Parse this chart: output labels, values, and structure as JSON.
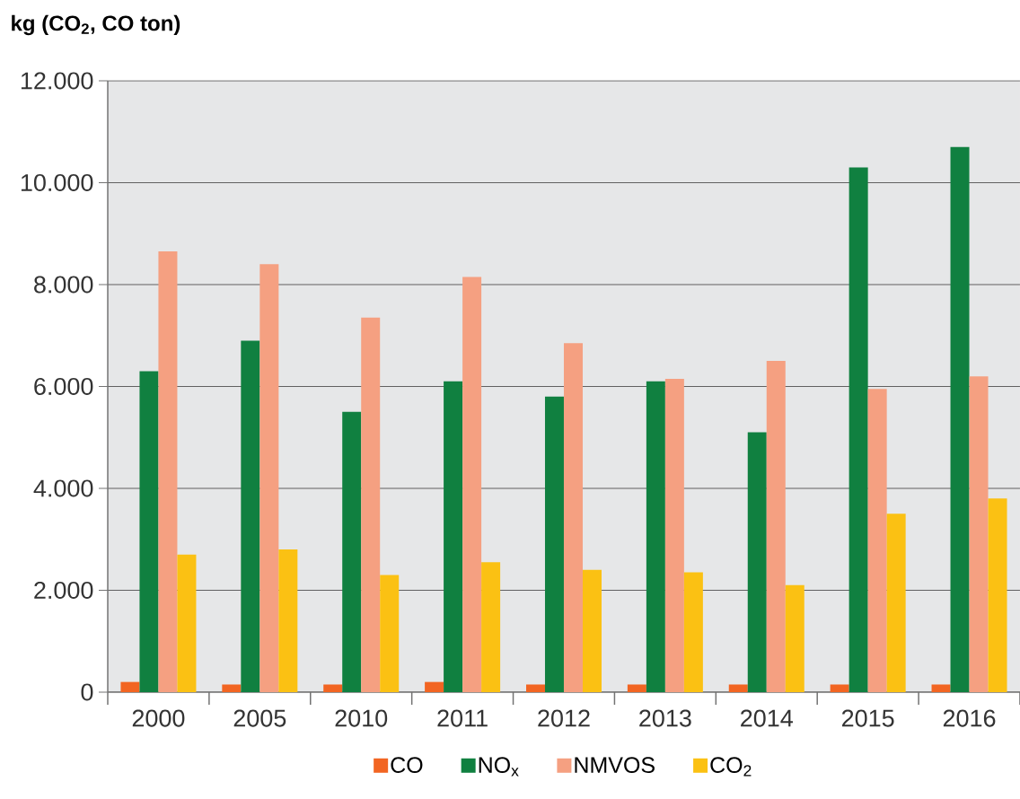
{
  "chart_data": {
    "type": "bar",
    "ylabel": "**kg (CO$_{2}$, CO ton)**",
    "categories": [
      "2000",
      "2005",
      "2010",
      "2011",
      "2012",
      "2013",
      "2014",
      "2015",
      "2016"
    ],
    "series": [
      {
        "name": "CO",
        "color": "#f26522",
        "values": [
          200,
          150,
          150,
          200,
          150,
          150,
          150,
          150,
          150
        ]
      },
      {
        "name": "NO$_{x}$",
        "color": "#108040",
        "values": [
          6300,
          6900,
          5500,
          6100,
          5800,
          6100,
          5100,
          10300,
          10700
        ]
      },
      {
        "name": "NMVOS",
        "color": "#f5a081",
        "values": [
          8650,
          8400,
          7350,
          8150,
          6850,
          6150,
          6500,
          5950,
          6200
        ]
      },
      {
        "name": "CO$_{2}$",
        "color": "#fbc113",
        "values": [
          2700,
          2800,
          2300,
          2550,
          2400,
          2350,
          2100,
          3500,
          3800
        ]
      }
    ],
    "ylim": [
      0,
      12000
    ],
    "yticks": [
      {
        "value": 0,
        "label": "0"
      },
      {
        "value": 2000,
        "label": "2.000"
      },
      {
        "value": 4000,
        "label": "4.000"
      },
      {
        "value": 6000,
        "label": "6.000"
      },
      {
        "value": 8000,
        "label": "8.000"
      },
      {
        "value": 10000,
        "label": "10.000"
      },
      {
        "value": 12000,
        "label": "12.000"
      }
    ],
    "grid": "y",
    "legend": "bottom"
  }
}
